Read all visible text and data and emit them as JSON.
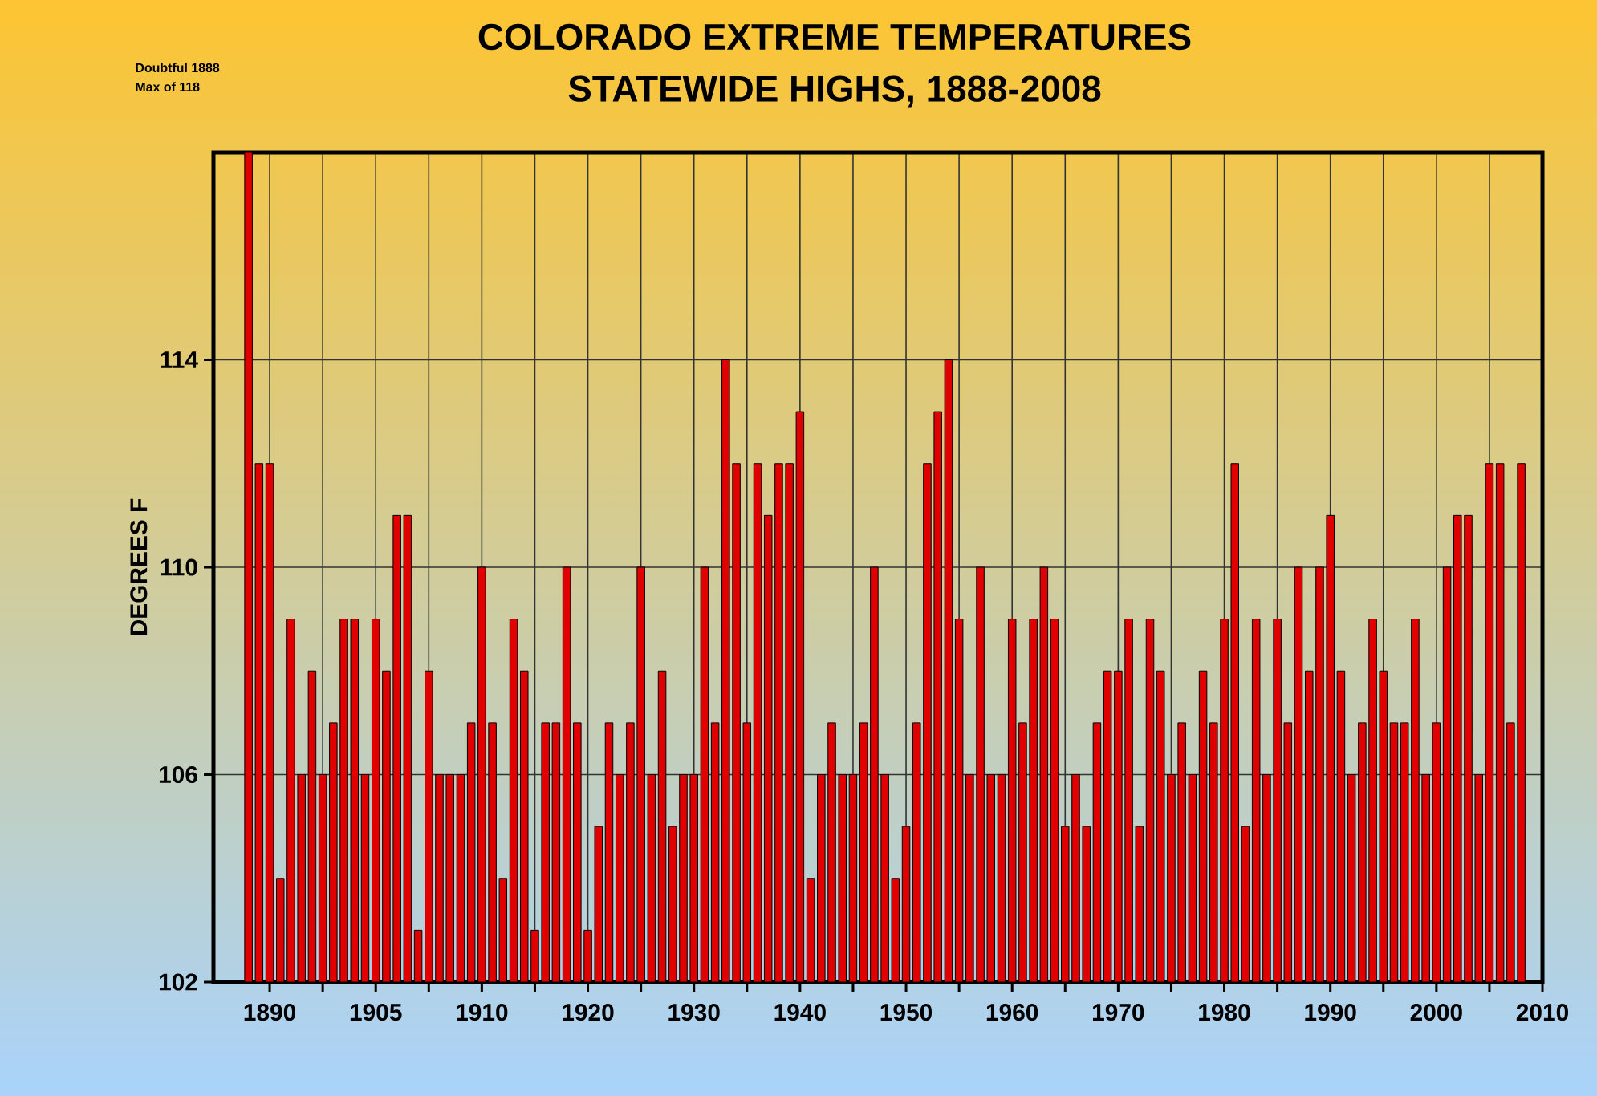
{
  "chart_data": {
    "type": "bar",
    "title": "COLORADO EXTREME TEMPERATURES",
    "subtitle": "STATEWIDE HIGHS, 1888-2008",
    "ylabel": "DEGREES F",
    "categories": [
      null,
      null,
      "1890",
      null,
      null,
      null,
      null,
      null,
      null,
      null,
      null,
      null,
      "1905",
      null,
      null,
      null,
      null,
      null,
      null,
      null,
      null,
      null,
      "1910",
      null,
      null,
      null,
      null,
      null,
      null,
      null,
      null,
      null,
      "1920",
      null,
      null,
      null,
      null,
      null,
      null,
      null,
      null,
      null,
      "1930",
      null,
      null,
      null,
      null,
      null,
      null,
      null,
      null,
      null,
      "1940",
      null,
      null,
      null,
      null,
      null,
      null,
      null,
      null,
      null,
      "1950",
      null,
      null,
      null,
      null,
      null,
      null,
      null,
      null,
      null,
      "1960",
      null,
      null,
      null,
      null,
      null,
      null,
      null,
      null,
      null,
      "1970",
      null,
      null,
      null,
      null,
      null,
      null,
      null,
      null,
      null,
      "1980",
      null,
      null,
      null,
      null,
      null,
      null,
      null,
      null,
      null,
      "1990",
      null,
      null,
      null,
      null,
      null,
      null,
      null,
      null,
      null,
      "2000",
      null,
      null,
      null,
      null,
      null,
      null,
      null,
      null,
      null,
      "2010"
    ],
    "values": [
      118,
      112,
      112,
      104,
      109,
      106,
      108,
      106,
      107,
      109,
      109,
      106,
      109,
      108,
      111,
      111,
      103,
      108,
      106,
      106,
      106,
      107,
      110,
      107,
      104,
      109,
      108,
      103,
      107,
      107,
      110,
      107,
      103,
      105,
      107,
      106,
      107,
      110,
      106,
      108,
      105,
      106,
      106,
      110,
      107,
      114,
      112,
      107,
      112,
      111,
      112,
      112,
      113,
      104,
      106,
      107,
      106,
      106,
      107,
      110,
      106,
      104,
      105,
      107,
      112,
      113,
      114,
      109,
      106,
      110,
      106,
      106,
      109,
      107,
      109,
      110,
      109,
      105,
      106,
      105,
      107,
      108,
      108,
      109,
      105,
      109,
      108,
      106,
      107,
      106,
      108,
      107,
      109,
      112,
      105,
      109,
      106,
      109,
      107,
      110,
      108,
      110,
      111,
      108,
      106,
      107,
      109,
      108,
      107,
      107,
      109,
      106,
      107,
      110,
      111,
      111,
      106,
      112,
      112,
      107,
      112,
      null,
      null
    ],
    "color": "#e00000",
    "ylim": [
      102,
      118
    ],
    "yticks": [
      102,
      106,
      110,
      114
    ],
    "grid": true,
    "annotations": [
      "Doubtful 1888",
      "Max of 118"
    ]
  }
}
